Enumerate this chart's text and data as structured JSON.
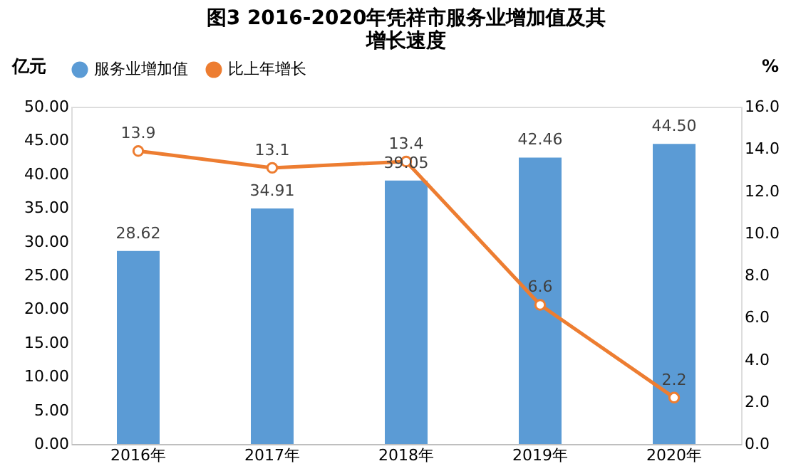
{
  "chart_data": {
    "type": "bar",
    "title": "图3 2016-2020年凭祥市服务业增加值及其增长速度",
    "categories": [
      "2016年",
      "2017年",
      "2018年",
      "2019年",
      "2020年"
    ],
    "series": [
      {
        "name": "服务业增加值",
        "color": "#5b9bd5",
        "values": [
          28.62,
          34.91,
          39.05,
          42.46,
          44.5
        ],
        "value_labels": [
          "28.62",
          "34.91",
          "39.05",
          "42.46",
          "44.50"
        ]
      },
      {
        "name": "比上年增长",
        "type": "line",
        "axis": "y2",
        "color": "#ed7d31",
        "marker": "circle",
        "values": [
          13.9,
          13.1,
          13.4,
          6.6,
          2.2
        ],
        "value_labels": [
          "13.9",
          "13.1",
          "13.4",
          "6.6",
          "2.2"
        ]
      }
    ],
    "ylabel": "亿元",
    "y2label": "%",
    "ylim": [
      0,
      50
    ],
    "yticks": [
      {
        "value": 0,
        "label": "0.00"
      },
      {
        "value": 5,
        "label": "5.00"
      },
      {
        "value": 10,
        "label": "10.00"
      },
      {
        "value": 15,
        "label": "15.00"
      },
      {
        "value": 20,
        "label": "20.00"
      },
      {
        "value": 25,
        "label": "25.00"
      },
      {
        "value": 30,
        "label": "30.00"
      },
      {
        "value": 35,
        "label": "35.00"
      },
      {
        "value": 40,
        "label": "40.00"
      },
      {
        "value": 45,
        "label": "45.00"
      },
      {
        "value": 50,
        "label": "50.00"
      }
    ],
    "y2lim": [
      0,
      16
    ],
    "y2ticks": [
      {
        "value": 0,
        "label": "0.0"
      },
      {
        "value": 2,
        "label": "2.0"
      },
      {
        "value": 4,
        "label": "4.0"
      },
      {
        "value": 6,
        "label": "6.0"
      },
      {
        "value": 8,
        "label": "8.0"
      },
      {
        "value": 10,
        "label": "10.0"
      },
      {
        "value": 12,
        "label": "12.0"
      },
      {
        "value": 14,
        "label": "14.0"
      },
      {
        "value": 16,
        "label": "16.0"
      }
    ],
    "legend": "top",
    "grid": false
  }
}
